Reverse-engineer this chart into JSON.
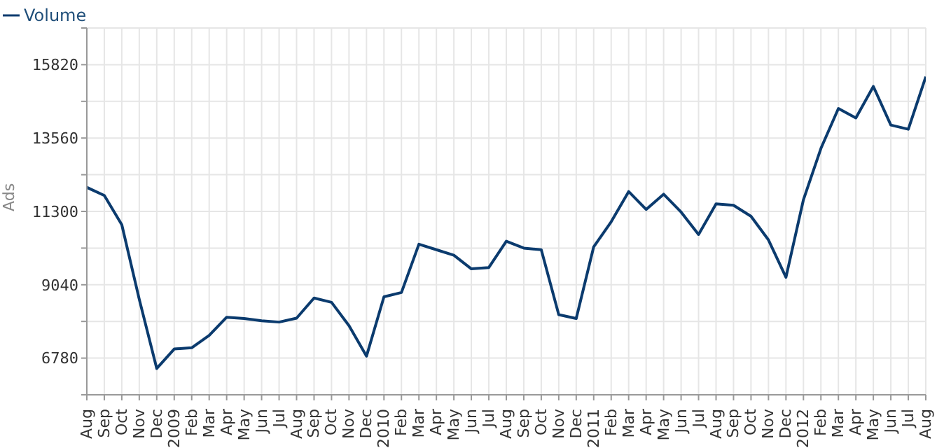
{
  "chart_data": {
    "type": "line",
    "ylabel": "Ads",
    "categories": [
      "Aug",
      "Sep",
      "Oct",
      "Nov",
      "Dec",
      "2009",
      "Feb",
      "Mar",
      "Apr",
      "May",
      "Jun",
      "Jul",
      "Aug",
      "Sep",
      "Oct",
      "Nov",
      "Dec",
      "2010",
      "Feb",
      "Mar",
      "Apr",
      "May",
      "Jun",
      "Jul",
      "Aug",
      "Sep",
      "Oct",
      "Nov",
      "Dec",
      "2011",
      "Feb",
      "Mar",
      "Apr",
      "May",
      "Jun",
      "Jul",
      "Aug",
      "Sep",
      "Oct",
      "Nov",
      "Dec",
      "2012",
      "Feb",
      "Mar",
      "Apr",
      "May",
      "Jun",
      "Jul",
      "Aug"
    ],
    "series": [
      {
        "name": "Volume",
        "color": "#0b3b6e",
        "values": [
          12040,
          11790,
          10890,
          8590,
          6460,
          7060,
          7100,
          7480,
          8040,
          8000,
          7930,
          7890,
          8010,
          8630,
          8500,
          7780,
          6840,
          8670,
          8800,
          10290,
          10120,
          9950,
          9530,
          9570,
          10380,
          10170,
          10120,
          8120,
          8000,
          10210,
          10980,
          11910,
          11360,
          11830,
          11280,
          10590,
          11530,
          11490,
          11150,
          10420,
          9270,
          11660,
          13240,
          14470,
          14180,
          15150,
          13960,
          13830,
          15450
        ]
      }
    ],
    "ylim": [
      5650,
      16950
    ],
    "yticks": [
      {
        "value": 5650,
        "label": null
      },
      6780,
      {
        "value": 7910,
        "label": null
      },
      9040,
      {
        "value": 10170,
        "label": null
      },
      11300,
      {
        "value": 12430,
        "label": null
      },
      13560,
      {
        "value": 14690,
        "label": null
      },
      15820,
      {
        "value": 16950,
        "label": null
      }
    ],
    "grid": true,
    "legend": "top left",
    "marker": "none",
    "line_style": "solid"
  }
}
